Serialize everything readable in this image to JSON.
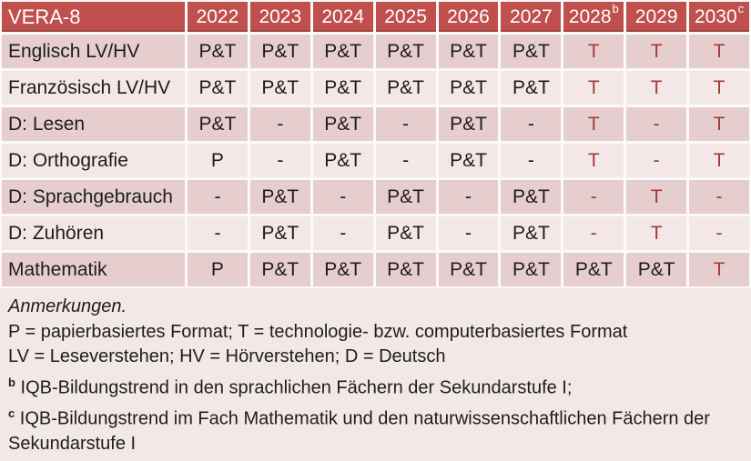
{
  "colors": {
    "header_bg": "#c0504d",
    "header_text": "#ffffff",
    "band_dark": "#e6cece",
    "band_light": "#f3e7e7",
    "page_bg": "#f3e8e8",
    "gridline": "#fcf9f9",
    "text": "#1d1d1d",
    "accent_red": "#a23b37"
  },
  "table": {
    "title": "VERA-8",
    "columns": [
      {
        "label": "2022",
        "sup": ""
      },
      {
        "label": "2023",
        "sup": ""
      },
      {
        "label": "2024",
        "sup": ""
      },
      {
        "label": "2025",
        "sup": ""
      },
      {
        "label": "2026",
        "sup": ""
      },
      {
        "label": "2027",
        "sup": ""
      },
      {
        "label": "2028",
        "sup": "b"
      },
      {
        "label": "2029",
        "sup": ""
      },
      {
        "label": "2030",
        "sup": "c"
      }
    ],
    "rows": [
      {
        "id": "englisch-lv-hv",
        "label": "Englisch LV/HV",
        "band": "dark",
        "cells": [
          {
            "v": "P&T",
            "red": false
          },
          {
            "v": "P&T",
            "red": false
          },
          {
            "v": "P&T",
            "red": false
          },
          {
            "v": "P&T",
            "red": false
          },
          {
            "v": "P&T",
            "red": false
          },
          {
            "v": "P&T",
            "red": false
          },
          {
            "v": "T",
            "red": true
          },
          {
            "v": "T",
            "red": true
          },
          {
            "v": "T",
            "red": true
          }
        ]
      },
      {
        "id": "franzoesisch-lv-hv",
        "label": "Französisch LV/HV",
        "band": "light",
        "cells": [
          {
            "v": "P&T",
            "red": false
          },
          {
            "v": "P&T",
            "red": false
          },
          {
            "v": "P&T",
            "red": false
          },
          {
            "v": "P&T",
            "red": false
          },
          {
            "v": "P&T",
            "red": false
          },
          {
            "v": "P&T",
            "red": false
          },
          {
            "v": "T",
            "red": true
          },
          {
            "v": "T",
            "red": true
          },
          {
            "v": "T",
            "red": true
          }
        ]
      },
      {
        "id": "d-lesen",
        "label": "D: Lesen",
        "band": "dark",
        "cells": [
          {
            "v": "P&T",
            "red": false
          },
          {
            "v": "-",
            "red": false
          },
          {
            "v": "P&T",
            "red": false
          },
          {
            "v": "-",
            "red": false
          },
          {
            "v": "P&T",
            "red": false
          },
          {
            "v": "-",
            "red": false
          },
          {
            "v": "T",
            "red": true
          },
          {
            "v": "-",
            "red": true
          },
          {
            "v": "T",
            "red": true
          }
        ]
      },
      {
        "id": "d-orthografie",
        "label": "D: Orthografie",
        "band": "light",
        "cells": [
          {
            "v": "P",
            "red": false
          },
          {
            "v": "-",
            "red": false
          },
          {
            "v": "P&T",
            "red": false
          },
          {
            "v": "-",
            "red": false
          },
          {
            "v": "P&T",
            "red": false
          },
          {
            "v": "-",
            "red": false
          },
          {
            "v": "T",
            "red": true
          },
          {
            "v": "-",
            "red": true
          },
          {
            "v": "T",
            "red": true
          }
        ]
      },
      {
        "id": "d-sprachgebrauch",
        "label": "D: Sprachgebrauch",
        "band": "dark",
        "cells": [
          {
            "v": "-",
            "red": false
          },
          {
            "v": "P&T",
            "red": false
          },
          {
            "v": "-",
            "red": false
          },
          {
            "v": "P&T",
            "red": false
          },
          {
            "v": "-",
            "red": false
          },
          {
            "v": "P&T",
            "red": false
          },
          {
            "v": "-",
            "red": true
          },
          {
            "v": "T",
            "red": true
          },
          {
            "v": "-",
            "red": true
          }
        ]
      },
      {
        "id": "d-zuhoeren",
        "label": "D: Zuhören",
        "band": "light",
        "cells": [
          {
            "v": "-",
            "red": false
          },
          {
            "v": "P&T",
            "red": false
          },
          {
            "v": "-",
            "red": false
          },
          {
            "v": "P&T",
            "red": false
          },
          {
            "v": "-",
            "red": false
          },
          {
            "v": "P&T",
            "red": false
          },
          {
            "v": "-",
            "red": true
          },
          {
            "v": "T",
            "red": true
          },
          {
            "v": "-",
            "red": true
          }
        ]
      },
      {
        "id": "mathematik",
        "label": "Mathematik",
        "band": "dark",
        "cells": [
          {
            "v": "P",
            "red": false
          },
          {
            "v": "P&T",
            "red": false
          },
          {
            "v": "P&T",
            "red": false
          },
          {
            "v": "P&T",
            "red": false
          },
          {
            "v": "P&T",
            "red": false
          },
          {
            "v": "P&T",
            "red": false
          },
          {
            "v": "P&T",
            "red": false
          },
          {
            "v": "P&T",
            "red": false
          },
          {
            "v": "T",
            "red": true
          }
        ]
      }
    ]
  },
  "notes": {
    "heading": "Anmerkungen.",
    "lines": [
      {
        "sup": "",
        "text": "P = papierbasiertes Format; T = technologie- bzw. computerbasiertes Format"
      },
      {
        "sup": "",
        "text": "LV = Leseverstehen; HV = Hörverstehen; D = Deutsch"
      },
      {
        "sup": "b",
        "text": "IQB-Bildungstrend in den sprachlichen Fächern der Sekundarstufe I;"
      },
      {
        "sup": "c",
        "text": "IQB-Bildungstrend im Fach Mathematik und den naturwissenschaftlichen Fächern der Sekundarstufe I"
      }
    ]
  }
}
